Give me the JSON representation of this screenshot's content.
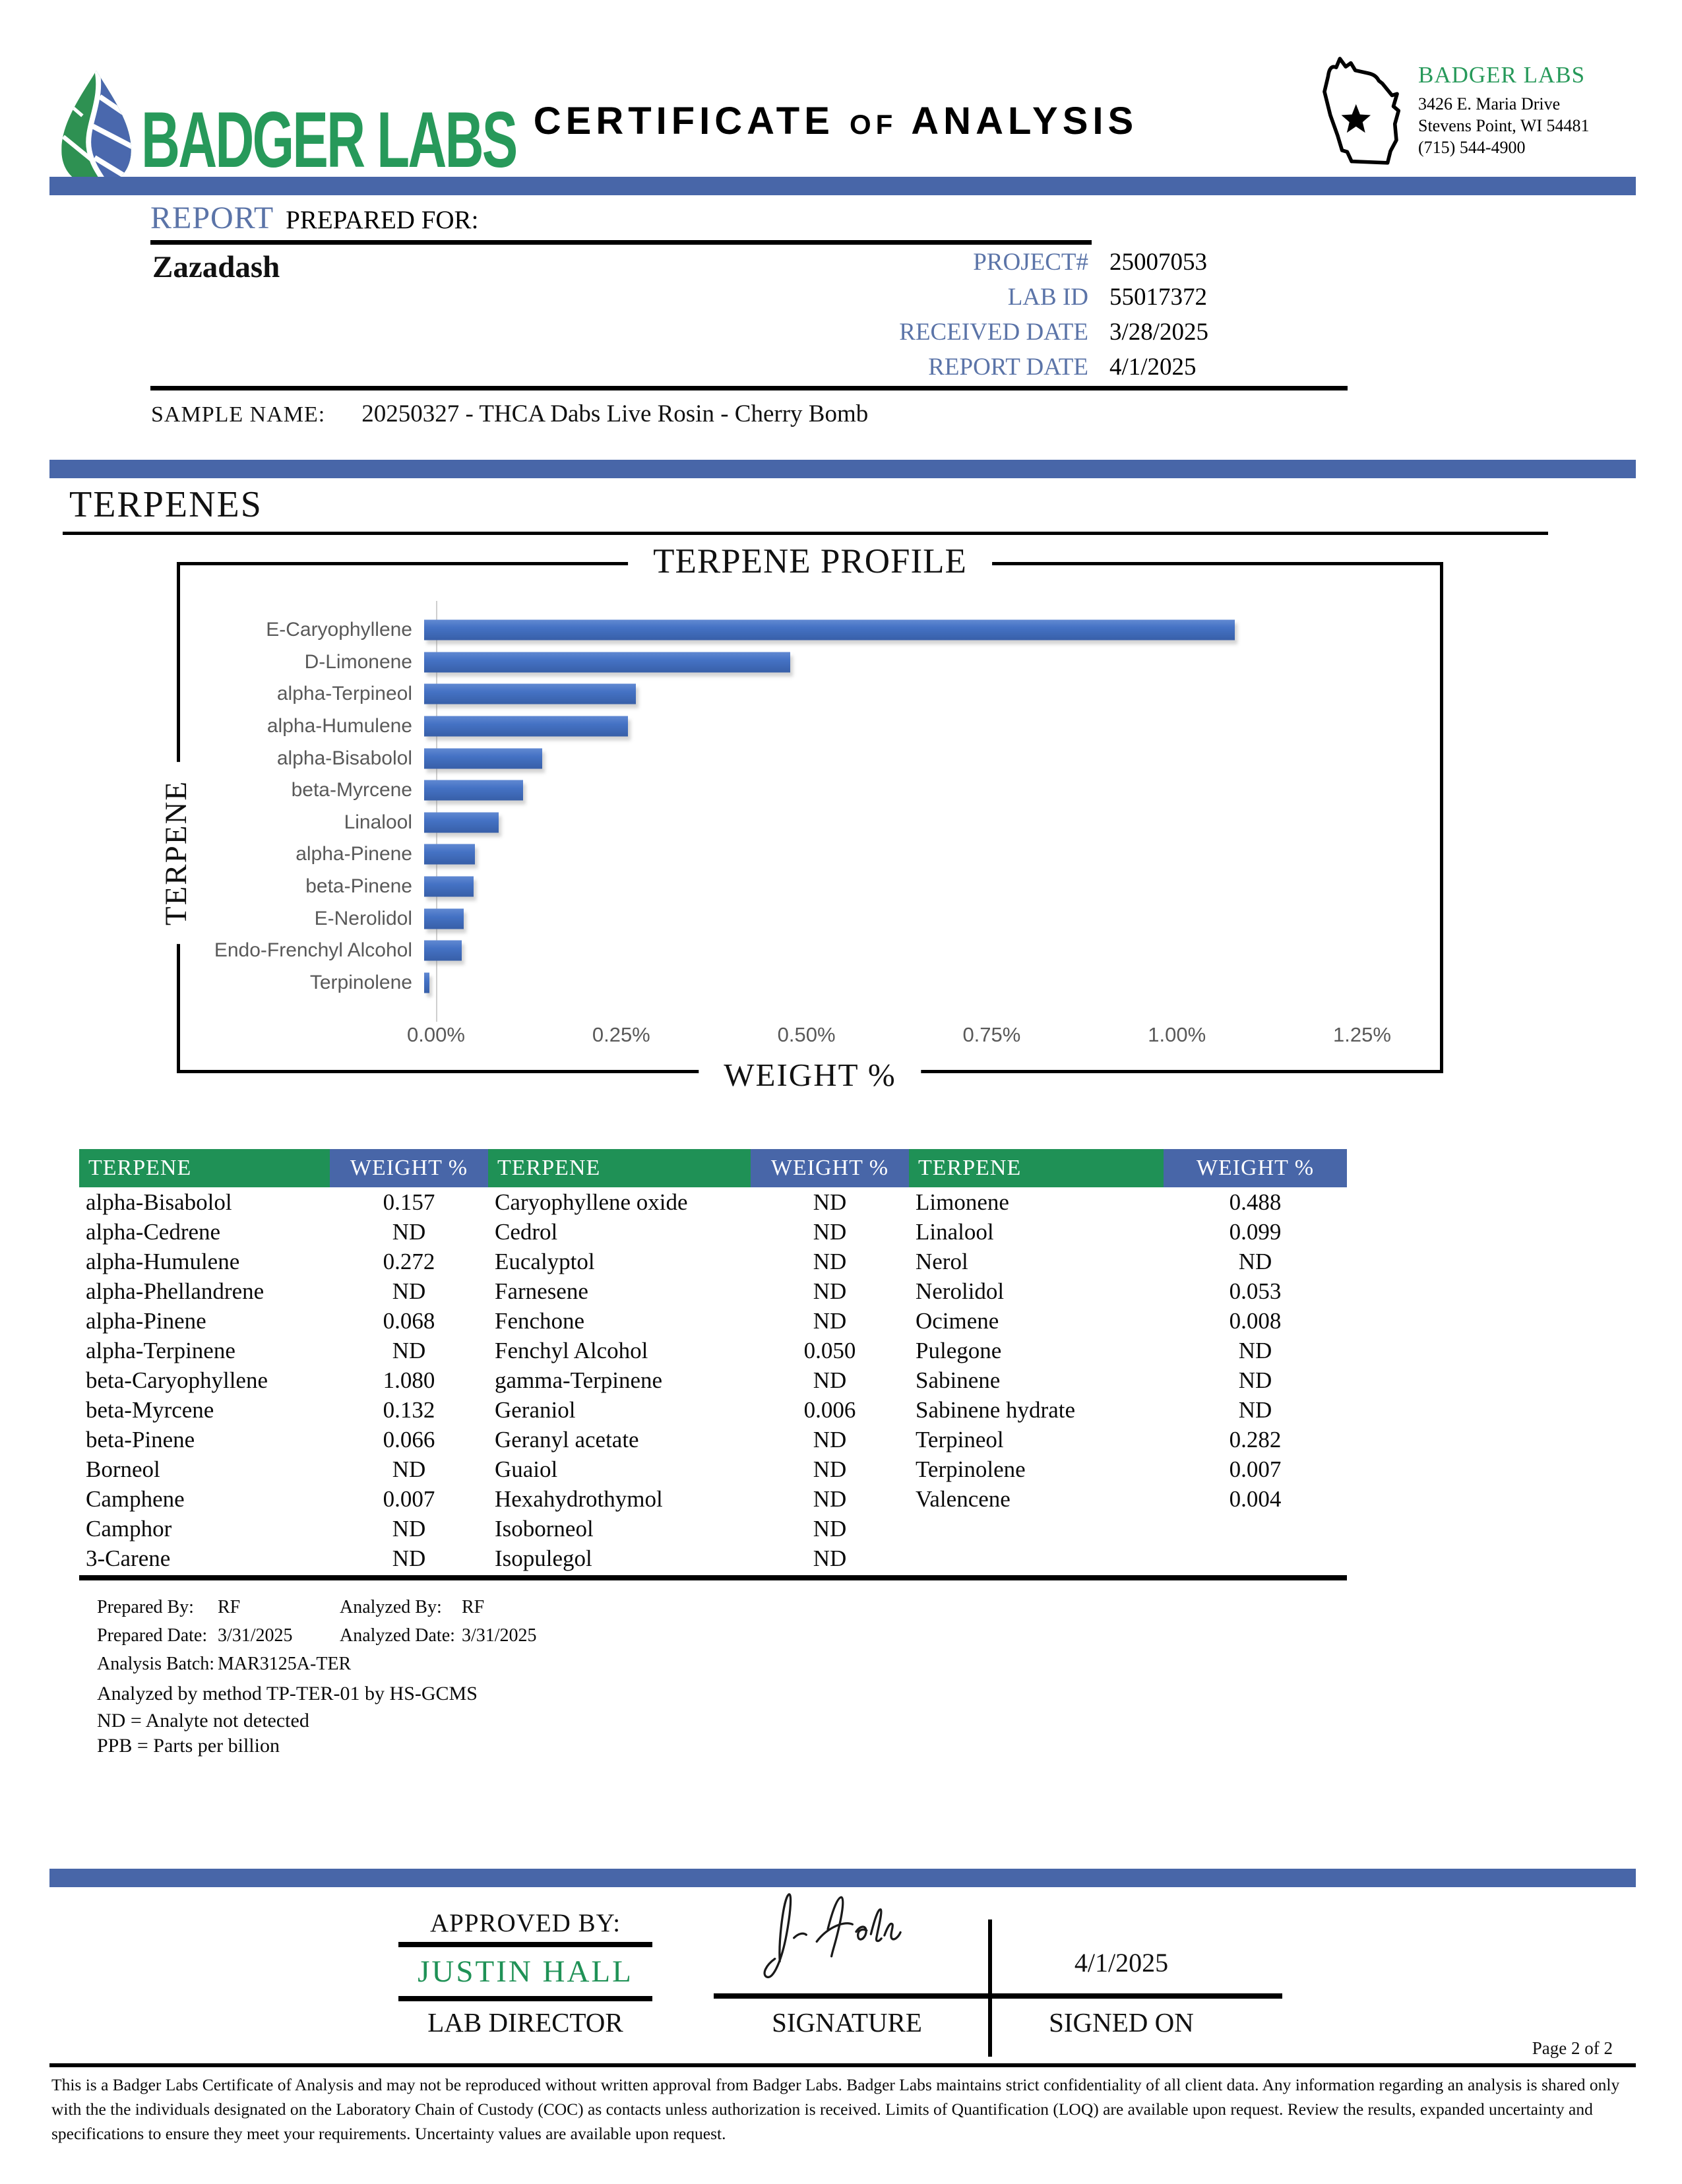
{
  "header": {
    "brand": "BADGER LABS",
    "title_part1": "CERTIFICATE",
    "title_of": "OF",
    "title_part2": "ANALYSIS",
    "lab_info": {
      "name": "BADGER LABS",
      "address_line1": "3426 E. Maria Drive",
      "address_line2": "Stevens Point, WI 54481",
      "phone": "(715) 544-4900"
    }
  },
  "report": {
    "heading_primary": "REPORT",
    "heading_secondary": "PREPARED FOR:",
    "client": "Zazadash",
    "fields": [
      {
        "label": "PROJECT#",
        "value": "25007053"
      },
      {
        "label": "LAB ID",
        "value": "55017372"
      },
      {
        "label": "RECEIVED DATE",
        "value": "3/28/2025"
      },
      {
        "label": "REPORT DATE",
        "value": "4/1/2025"
      }
    ],
    "sample_label": "SAMPLE NAME:",
    "sample_value": "20250327 - THCA Dabs Live Rosin - Cherry Bomb"
  },
  "section_title": "TERPENES",
  "chart_data": {
    "type": "bar",
    "orientation": "horizontal",
    "title": "TERPENE PROFILE",
    "xlabel": "WEIGHT %",
    "ylabel": "TERPENE",
    "xlim": [
      0,
      1.25
    ],
    "x_ticks": [
      "0.00%",
      "0.25%",
      "0.50%",
      "0.75%",
      "1.00%",
      "1.25%"
    ],
    "grid": false,
    "legend": false,
    "categories": [
      "E-Caryophyllene",
      "D-Limonene",
      "alpha-Terpineol",
      "alpha-Humulene",
      "alpha-Bisabolol",
      "beta-Myrcene",
      "Linalool",
      "alpha-Pinene",
      "beta-Pinene",
      "E-Nerolidol",
      "Endo-Frenchyl Alcohol",
      "Terpinolene"
    ],
    "values": [
      1.08,
      0.488,
      0.282,
      0.272,
      0.157,
      0.132,
      0.099,
      0.068,
      0.066,
      0.053,
      0.05,
      0.007
    ]
  },
  "table": {
    "header_name": "TERPENE",
    "header_value": "WEIGHT %",
    "rows": [
      [
        "alpha-Bisabolol",
        "0.157",
        "Caryophyllene oxide",
        "ND",
        "Limonene",
        "0.488"
      ],
      [
        "alpha-Cedrene",
        "ND",
        "Cedrol",
        "ND",
        "Linalool",
        "0.099"
      ],
      [
        "alpha-Humulene",
        "0.272",
        "Eucalyptol",
        "ND",
        "Nerol",
        "ND"
      ],
      [
        "alpha-Phellandrene",
        "ND",
        "Farnesene",
        "ND",
        "Nerolidol",
        "0.053"
      ],
      [
        "alpha-Pinene",
        "0.068",
        "Fenchone",
        "ND",
        "Ocimene",
        "0.008"
      ],
      [
        "alpha-Terpinene",
        "ND",
        "Fenchyl Alcohol",
        "0.050",
        "Pulegone",
        "ND"
      ],
      [
        "beta-Caryophyllene",
        "1.080",
        "gamma-Terpinene",
        "ND",
        "Sabinene",
        "ND"
      ],
      [
        "beta-Myrcene",
        "0.132",
        "Geraniol",
        "0.006",
        "Sabinene hydrate",
        "ND"
      ],
      [
        "beta-Pinene",
        "0.066",
        "Geranyl acetate",
        "ND",
        "Terpineol",
        "0.282"
      ],
      [
        "Borneol",
        "ND",
        "Guaiol",
        "ND",
        "Terpinolene",
        "0.007"
      ],
      [
        "Camphene",
        "0.007",
        "Hexahydrothymol",
        "ND",
        "Valencene",
        "0.004"
      ],
      [
        "Camphor",
        "ND",
        "Isoborneol",
        "ND",
        "",
        ""
      ],
      [
        "3-Carene",
        "ND",
        "Isopulegol",
        "ND",
        "",
        ""
      ]
    ]
  },
  "notes": {
    "prepared_by_label": "Prepared By:",
    "prepared_by": "RF",
    "analyzed_by_label": "Analyzed By:",
    "analyzed_by": "RF",
    "prepared_date_label": "Prepared Date:",
    "prepared_date": "3/31/2025",
    "analyzed_date_label": "Analyzed Date:",
    "analyzed_date": "3/31/2025",
    "batch_label": "Analysis Batch:",
    "batch": "MAR3125A-TER",
    "method": "Analyzed by method TP-TER-01 by HS-GCMS",
    "nd_note": "ND = Analyte not detected",
    "ppb_note": "PPB = Parts per billion"
  },
  "approval": {
    "approved_by_label": "APPROVED BY:",
    "name": "JUSTIN HALL",
    "role": "LAB DIRECTOR",
    "signature_label": "SIGNATURE",
    "signed_on_label": "SIGNED ON",
    "signed_date": "4/1/2025"
  },
  "footer": {
    "page": "Page 2 of 2",
    "disclaimer": "This is a Badger Labs Certificate of Analysis and may not be reproduced without written approval from Badger Labs. Badger Labs maintains strict confidentiality of all client data. Any information regarding an analysis is shared only with the the individuals designated on the Laboratory Chain of Custody (COC) as contacts unless authorization is received. Limits of Quantification (LOQ) are available upon request. Review the results, expanded uncertainty and specifications to ensure they meet your requirements. Uncertainty values are available upon request."
  },
  "colors": {
    "accent_blue": "#4866a8",
    "table_green": "#1f9156",
    "brand_green": "#27995a",
    "label_blue": "#5b74a8",
    "bar_blue": "#4472c4"
  }
}
